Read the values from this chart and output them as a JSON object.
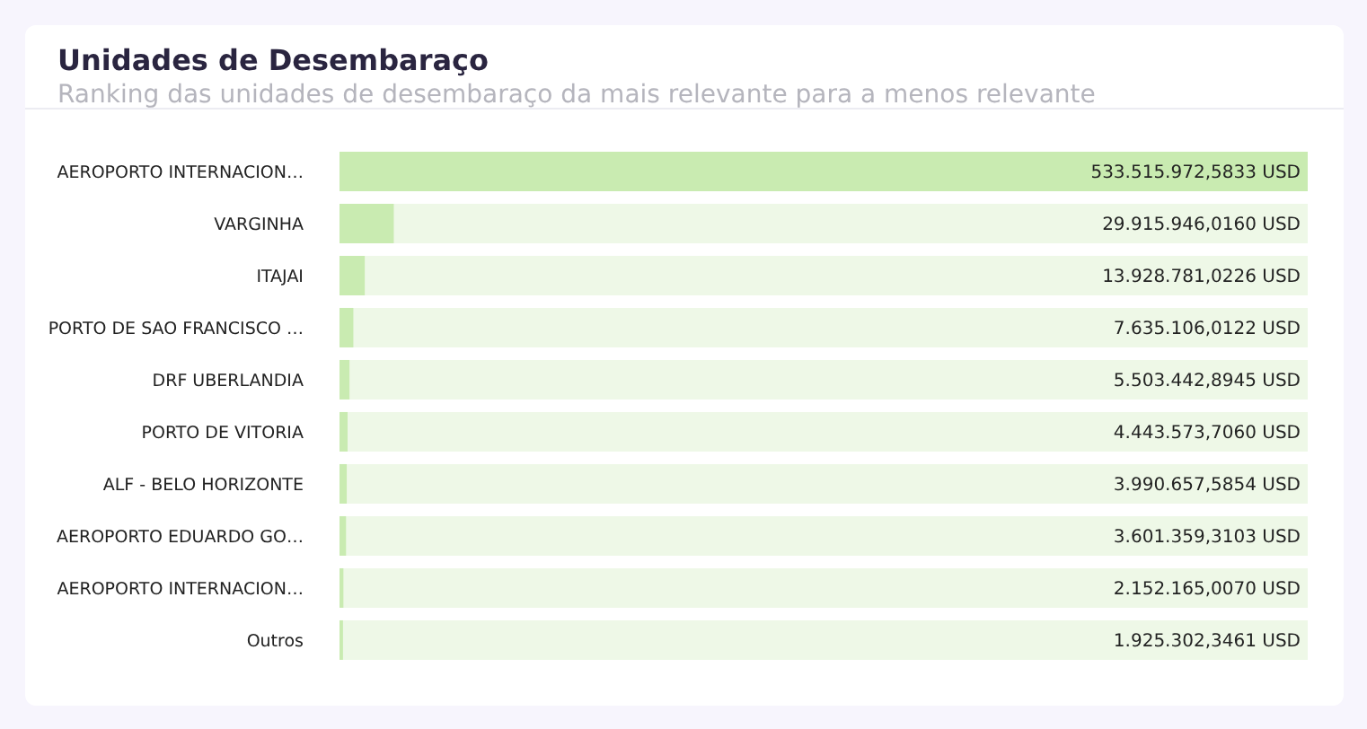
{
  "chart_data": {
    "type": "bar",
    "orientation": "horizontal",
    "title": "Unidades de Desembaraço",
    "subtitle": "Ranking das unidades de desembaraço da mais relevante para a menos relevante",
    "categories": [
      "AEROPORTO INTERNACION…",
      "VARGINHA",
      "ITAJAI",
      "PORTO DE SAO FRANCISCO …",
      "DRF UBERLANDIA",
      "PORTO DE VITORIA",
      "ALF - BELO HORIZONTE",
      "AEROPORTO EDUARDO GO…",
      "AEROPORTO INTERNACION…",
      "Outros"
    ],
    "values": [
      533515972.5833,
      29915946.016,
      13928781.0226,
      7635106.0122,
      5503442.8945,
      4443573.706,
      3990657.5854,
      3601359.3103,
      2152165.007,
      1925302.3461
    ],
    "value_labels": [
      "533.515.972,5833 USD",
      "29.915.946,0160 USD",
      "13.928.781,0226 USD",
      "7.635.106,0122 USD",
      "5.503.442,8945 USD",
      "4.443.573,7060 USD",
      "3.990.657,5854 USD",
      "3.601.359,3103 USD",
      "2.152.165,0070 USD",
      "1.925.302,3461 USD"
    ],
    "color": "#c9ebb1"
  }
}
